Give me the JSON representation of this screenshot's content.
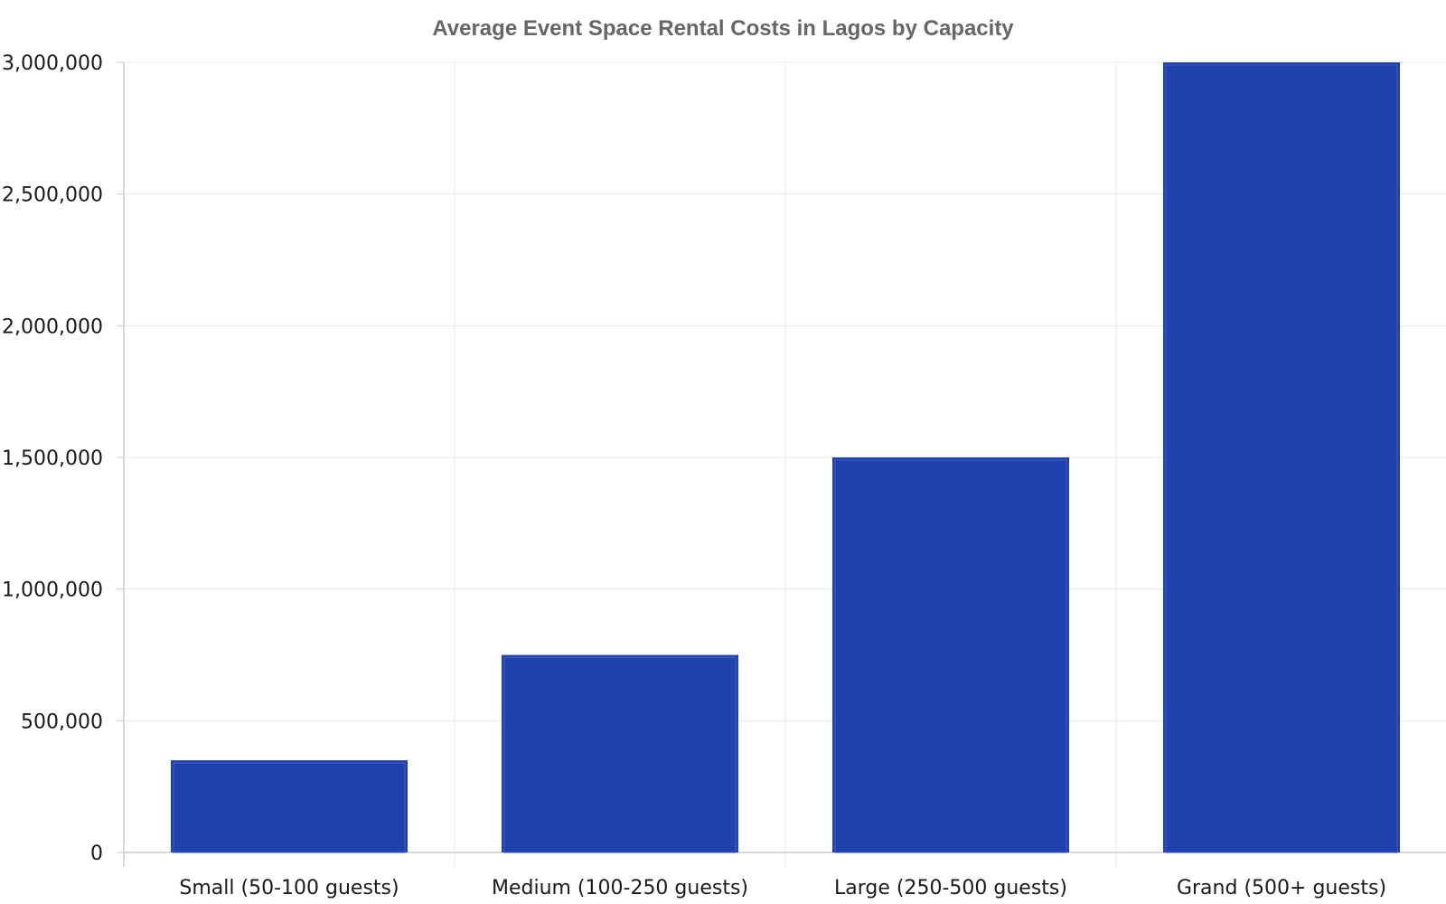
{
  "chart_data": {
    "type": "bar",
    "title": "Average Event Space Rental Costs in Lagos by Capacity",
    "categories": [
      "Small (50-100 guests)",
      "Medium (100-250 guests)",
      "Large (250-500 guests)",
      "Grand (500+ guests)"
    ],
    "values": [
      350000,
      750000,
      1500000,
      3000000
    ],
    "xlabel": "",
    "ylabel": "",
    "ylim": [
      0,
      3000000
    ],
    "yticks": [
      "0",
      "500,000",
      "1,000,000",
      "1,500,000",
      "2,000,000",
      "2,500,000",
      "3,000,000"
    ],
    "ytick_values": [
      0,
      500000,
      1000000,
      1500000,
      2000000,
      2500000,
      3000000
    ],
    "grid": true,
    "legend": "none",
    "colors": {
      "bar_fill": "#1f40ad",
      "bar_inner_line": "#3f5fc4",
      "grid": "#e8e8e8",
      "axis": "#cccccc",
      "tick_text": "#1a1a1a",
      "title": "#666666"
    }
  }
}
